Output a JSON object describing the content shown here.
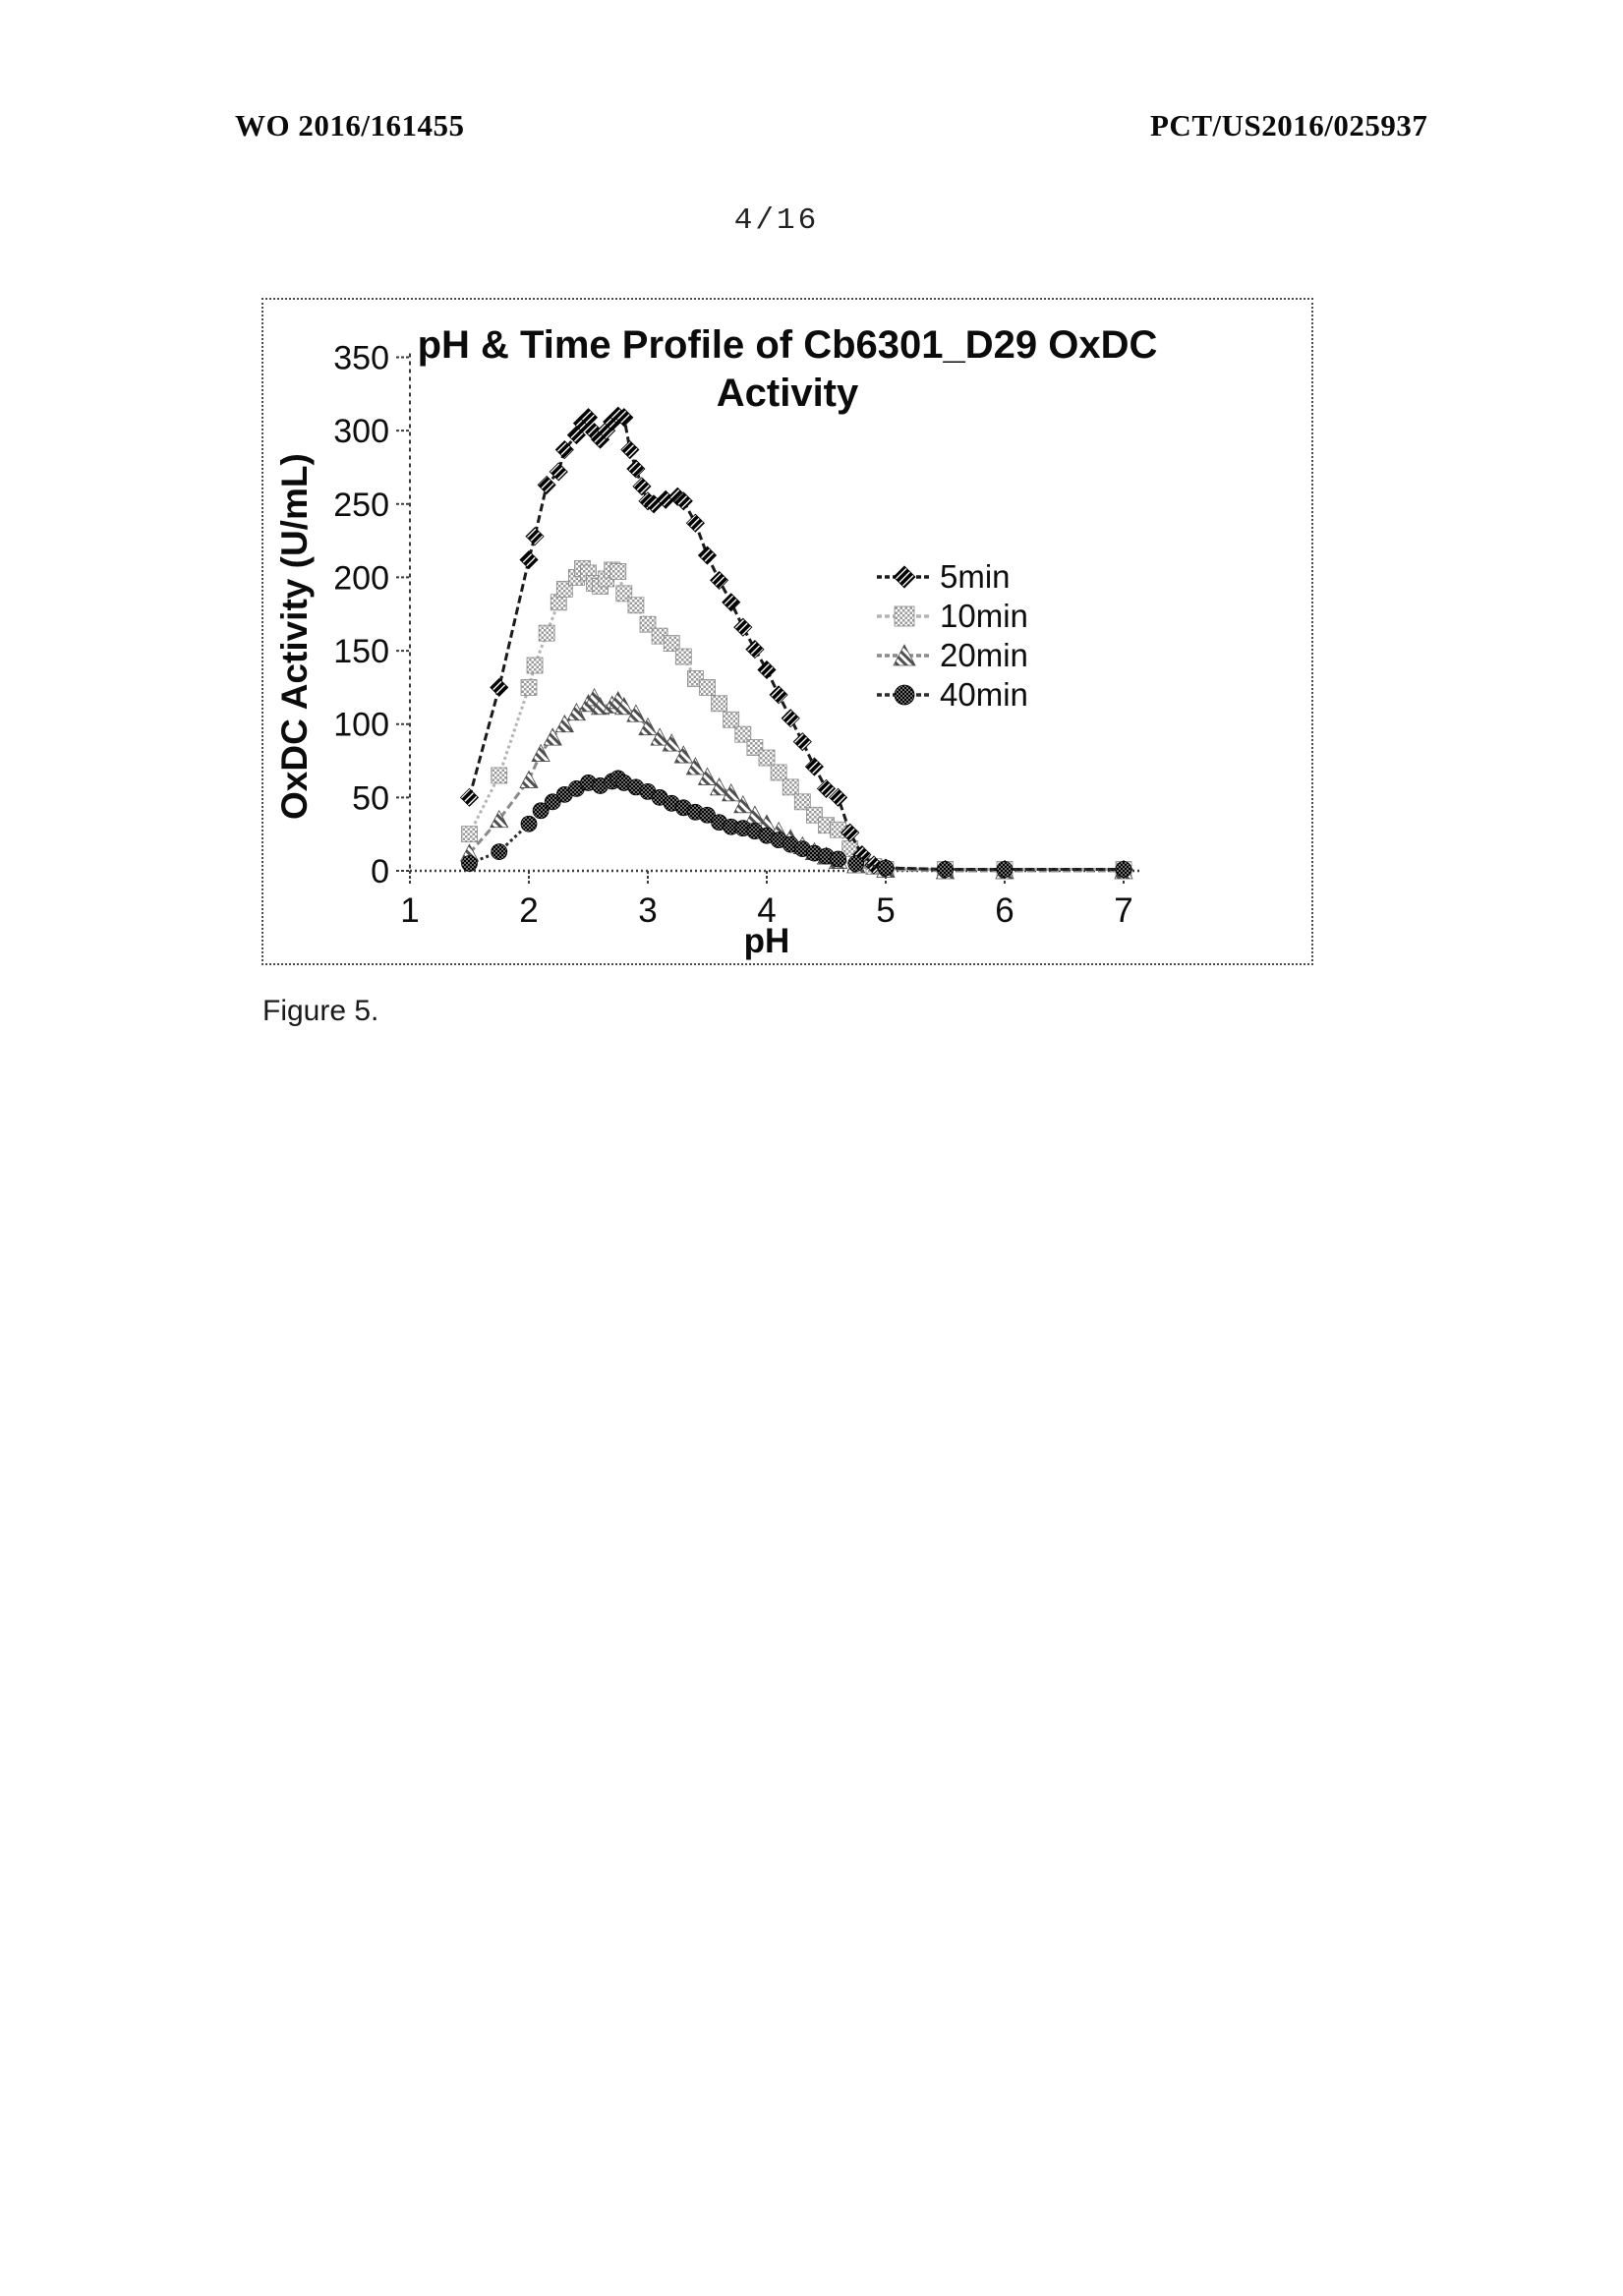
{
  "page": {
    "header_left": "WO 2016/161455",
    "header_right": "PCT/US2016/025937",
    "page_number": "4/16",
    "figure_caption": "Figure 5."
  },
  "chart_data": {
    "type": "line",
    "title_line1": "pH & Time Profile of Cb6301_D29 OxDC",
    "title_line2": "Activity",
    "xlabel": "pH",
    "ylabel": "OxDC Activity (U/mL)",
    "xlim": [
      1,
      7
    ],
    "ylim": [
      0,
      350
    ],
    "xticks": [
      1,
      2,
      3,
      4,
      5,
      6,
      7
    ],
    "yticks": [
      0,
      50,
      100,
      150,
      200,
      250,
      300,
      350
    ],
    "grid": false,
    "legend_position": "right-middle",
    "axis_color": "#3a3a3a",
    "series": [
      {
        "name": "10min",
        "marker": "square",
        "color": "#b4b4b4",
        "line_dash": "3 3",
        "points": [
          [
            1.5,
            25
          ],
          [
            1.75,
            65
          ],
          [
            2.0,
            125
          ],
          [
            2.05,
            140
          ],
          [
            2.15,
            162
          ],
          [
            2.25,
            183
          ],
          [
            2.3,
            192
          ],
          [
            2.4,
            200
          ],
          [
            2.45,
            206
          ],
          [
            2.5,
            203
          ],
          [
            2.55,
            196
          ],
          [
            2.6,
            194
          ],
          [
            2.65,
            199
          ],
          [
            2.7,
            205
          ],
          [
            2.75,
            204
          ],
          [
            2.8,
            189
          ],
          [
            2.9,
            181
          ],
          [
            3.0,
            168
          ],
          [
            3.1,
            160
          ],
          [
            3.2,
            155
          ],
          [
            3.3,
            146
          ],
          [
            3.4,
            131
          ],
          [
            3.5,
            125
          ],
          [
            3.6,
            114
          ],
          [
            3.7,
            103
          ],
          [
            3.8,
            93
          ],
          [
            3.9,
            84
          ],
          [
            4.0,
            77
          ],
          [
            4.1,
            67
          ],
          [
            4.2,
            57
          ],
          [
            4.3,
            47
          ],
          [
            4.4,
            38
          ],
          [
            4.5,
            31
          ],
          [
            4.6,
            28
          ],
          [
            4.7,
            15
          ],
          [
            4.8,
            7
          ],
          [
            4.9,
            3
          ],
          [
            5.0,
            1
          ],
          [
            5.5,
            1
          ],
          [
            6.0,
            1
          ],
          [
            7.0,
            1
          ]
        ]
      },
      {
        "name": "20min",
        "marker": "triangle",
        "color": "#8a8a8a",
        "line_dash": "8 4",
        "points": [
          [
            1.5,
            12
          ],
          [
            1.75,
            35
          ],
          [
            2.0,
            62
          ],
          [
            2.1,
            80
          ],
          [
            2.2,
            91
          ],
          [
            2.3,
            100
          ],
          [
            2.4,
            108
          ],
          [
            2.5,
            114
          ],
          [
            2.55,
            118
          ],
          [
            2.6,
            112
          ],
          [
            2.7,
            113
          ],
          [
            2.75,
            116
          ],
          [
            2.8,
            112
          ],
          [
            2.9,
            107
          ],
          [
            3.0,
            98
          ],
          [
            3.1,
            91
          ],
          [
            3.2,
            87
          ],
          [
            3.3,
            79
          ],
          [
            3.4,
            71
          ],
          [
            3.5,
            64
          ],
          [
            3.6,
            57
          ],
          [
            3.7,
            53
          ],
          [
            3.8,
            45
          ],
          [
            3.9,
            38
          ],
          [
            4.0,
            32
          ],
          [
            4.1,
            27
          ],
          [
            4.2,
            22
          ],
          [
            4.3,
            17
          ],
          [
            4.4,
            13
          ],
          [
            4.5,
            10
          ],
          [
            4.6,
            7
          ],
          [
            4.75,
            4
          ],
          [
            5.0,
            1
          ],
          [
            5.5,
            0
          ],
          [
            6.0,
            0
          ],
          [
            7.0,
            0
          ]
        ]
      },
      {
        "name": "5min",
        "marker": "diamond",
        "color": "#1a1a1a",
        "line_dash": "8 4",
        "points": [
          [
            1.5,
            50
          ],
          [
            1.75,
            125
          ],
          [
            2.0,
            212
          ],
          [
            2.05,
            228
          ],
          [
            2.15,
            263
          ],
          [
            2.25,
            272
          ],
          [
            2.3,
            287
          ],
          [
            2.4,
            297
          ],
          [
            2.45,
            305
          ],
          [
            2.5,
            309
          ],
          [
            2.55,
            299
          ],
          [
            2.6,
            294
          ],
          [
            2.65,
            300
          ],
          [
            2.7,
            306
          ],
          [
            2.75,
            310
          ],
          [
            2.8,
            309
          ],
          [
            2.85,
            287
          ],
          [
            2.9,
            274
          ],
          [
            2.95,
            262
          ],
          [
            3.0,
            252
          ],
          [
            3.05,
            250
          ],
          [
            3.15,
            253
          ],
          [
            3.25,
            255
          ],
          [
            3.3,
            252
          ],
          [
            3.4,
            237
          ],
          [
            3.5,
            215
          ],
          [
            3.6,
            198
          ],
          [
            3.7,
            183
          ],
          [
            3.8,
            166
          ],
          [
            3.9,
            151
          ],
          [
            4.0,
            137
          ],
          [
            4.1,
            120
          ],
          [
            4.2,
            104
          ],
          [
            4.3,
            88
          ],
          [
            4.4,
            71
          ],
          [
            4.5,
            56
          ],
          [
            4.6,
            50
          ],
          [
            4.7,
            26
          ],
          [
            4.8,
            11
          ],
          [
            4.9,
            4
          ],
          [
            5.0,
            2
          ],
          [
            5.5,
            1
          ],
          [
            6.0,
            1
          ],
          [
            7.0,
            1
          ]
        ]
      },
      {
        "name": "40min",
        "marker": "circle",
        "color": "#2a2a2a",
        "line_dash": "3 3",
        "points": [
          [
            1.5,
            5
          ],
          [
            1.75,
            13
          ],
          [
            2.0,
            32
          ],
          [
            2.1,
            41
          ],
          [
            2.2,
            47
          ],
          [
            2.3,
            52
          ],
          [
            2.4,
            56
          ],
          [
            2.5,
            60
          ],
          [
            2.6,
            58
          ],
          [
            2.7,
            61
          ],
          [
            2.75,
            63
          ],
          [
            2.8,
            60
          ],
          [
            2.9,
            57
          ],
          [
            3.0,
            54
          ],
          [
            3.1,
            50
          ],
          [
            3.2,
            46
          ],
          [
            3.3,
            43
          ],
          [
            3.4,
            40
          ],
          [
            3.5,
            38
          ],
          [
            3.6,
            33
          ],
          [
            3.7,
            30
          ],
          [
            3.8,
            29
          ],
          [
            3.9,
            27
          ],
          [
            4.0,
            24
          ],
          [
            4.1,
            21
          ],
          [
            4.2,
            18
          ],
          [
            4.3,
            15
          ],
          [
            4.4,
            12
          ],
          [
            4.5,
            10
          ],
          [
            4.6,
            8
          ],
          [
            4.75,
            5
          ],
          [
            5.0,
            2
          ],
          [
            5.5,
            1
          ],
          [
            6.0,
            1
          ],
          [
            7.0,
            1
          ]
        ]
      }
    ],
    "legend_order": [
      "5min",
      "10min",
      "20min",
      "40min"
    ]
  }
}
